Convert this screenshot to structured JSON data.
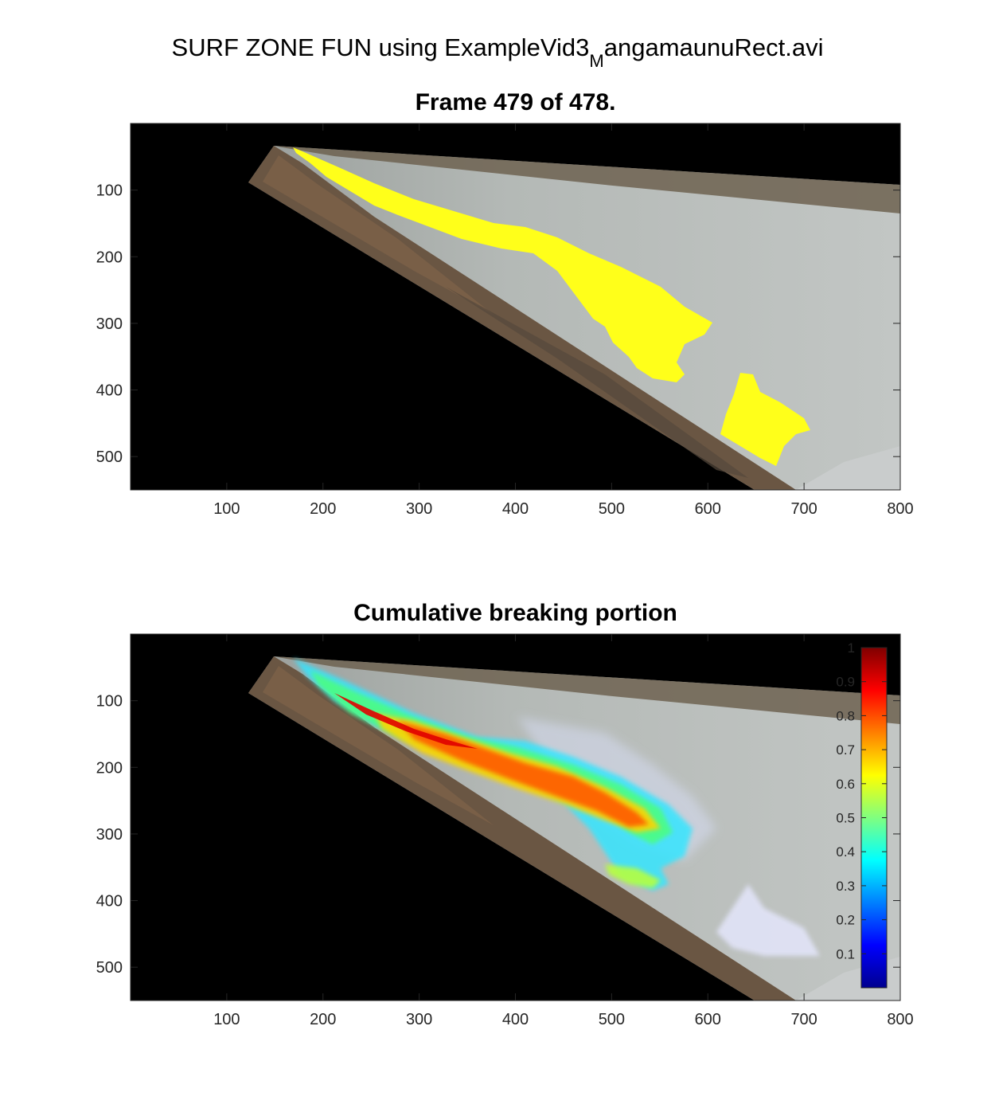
{
  "figure": {
    "suptitle_main": "SURF ZONE FUN using ExampleVid3",
    "suptitle_sub": "M",
    "suptitle_rest": "angamaunuRect.avi"
  },
  "chart_data": [
    {
      "type": "heatmap",
      "title": "Frame  479 of 478.",
      "xlabel": "",
      "ylabel": "",
      "xlim": [
        0,
        800
      ],
      "ylim": [
        550,
        0
      ],
      "x_ticks": [
        100,
        200,
        300,
        400,
        500,
        600,
        700,
        800
      ],
      "y_ticks": [
        100,
        200,
        300,
        400,
        500
      ],
      "overlay": "breaking pixels highlighted in yellow over rectified beach image",
      "colors": {
        "background": "#000000",
        "breaking": "#ffff1a",
        "water": "#b4b9b7",
        "beach": "#6e5a48"
      },
      "grid": false
    },
    {
      "type": "heatmap",
      "title": "Cumulative breaking portion",
      "xlabel": "",
      "ylabel": "",
      "xlim": [
        0,
        800
      ],
      "ylim": [
        550,
        0
      ],
      "x_ticks": [
        100,
        200,
        300,
        400,
        500,
        600,
        700,
        800
      ],
      "y_ticks": [
        100,
        200,
        300,
        400,
        500
      ],
      "colormap": "jet",
      "colorbar": {
        "location": "right-inside",
        "range": [
          0,
          1
        ],
        "ticks": [
          0.1,
          0.2,
          0.3,
          0.4,
          0.5,
          0.6,
          0.7,
          0.8,
          0.9,
          1
        ]
      },
      "grid": false
    }
  ]
}
